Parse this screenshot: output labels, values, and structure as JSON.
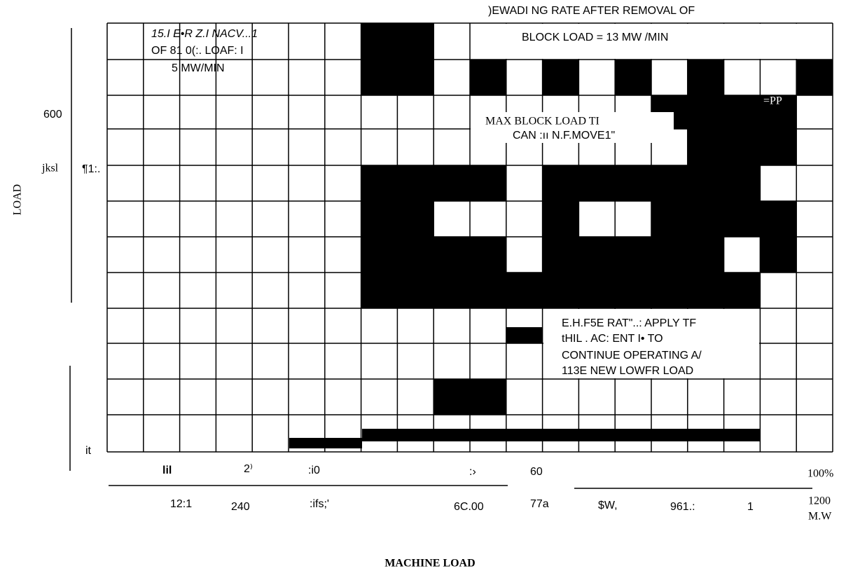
{
  "y_axis": {
    "title": "LOAD",
    "labels": [
      "600",
      "jksl",
      "¶1:.",
      "it"
    ]
  },
  "annotations": {
    "top_left": [
      "15.I E•R Z.I NACV...1",
      "OF 81 0(:. LOAF: I",
      "5 MW/MIN"
    ],
    "top_right": [
      ")EWADI NG RATE AFTER REMOVAL OF",
      "BLOCK LOAD = 13 MW /MIN"
    ],
    "middle": [
      "MAX BLOCK LOAD TI",
      "CAN :ıı N.F.MOVE1\"",
      "=PP"
    ],
    "bottom_right": [
      "E.H.F5E RAT\"..: APPLY TF",
      "tHIL . AC: ENT I• TO",
      "CONTINUE OPERATING A/",
      "113E NEW LOWFR LOAD"
    ]
  },
  "x_axis": {
    "row1": [
      "lil",
      "2⁾",
      ":i0",
      ":›",
      "60",
      "100%"
    ],
    "row2": [
      "12:1",
      "240",
      ":ifs;'",
      "6C.00",
      "77a",
      "$W,",
      "961.:",
      "1",
      "1200",
      "M.W"
    ],
    "title": "MACHINE LOAD"
  }
}
